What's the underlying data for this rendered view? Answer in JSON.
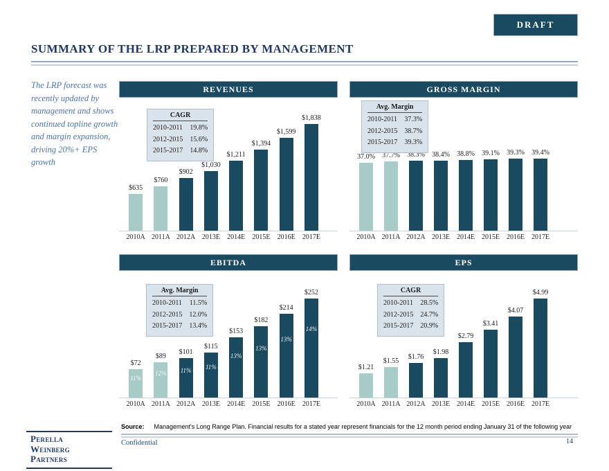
{
  "colors": {
    "accent_dark_teal": "#1A4A5F",
    "accent_light_teal": "#A7CBC6",
    "title_navy": "#1F3864",
    "sidebar_text_blue": "#4C74A6",
    "table_bg": "#D9E3EC",
    "footer_blue": "#1F4E79"
  },
  "header": {
    "draft_label": "DRAFT",
    "title": "SUMMARY OF THE LRP PREPARED BY MANAGEMENT"
  },
  "sidebar": {
    "note": "The LRP forecast was recently updated by management and shows continued topline growth and margin expansion, driving 20%+ EPS growth"
  },
  "chart_data": [
    {
      "type": "bar",
      "title": "REVENUES",
      "categories": [
        "2010A",
        "2011A",
        "2012A",
        "2013E",
        "2014E",
        "2015E",
        "2016E",
        "2017E"
      ],
      "values": [
        635,
        760,
        902,
        1030,
        1211,
        1394,
        1599,
        1838
      ],
      "value_labels": [
        "$635",
        "$760",
        "$902",
        "$1,030",
        "$1,211",
        "$1,394",
        "$1,599",
        "$1,838"
      ],
      "actual_bar_count": 2,
      "ylim": [
        0,
        1838
      ],
      "legend_position": "none",
      "grid": false,
      "stat_table": {
        "header": "CAGR",
        "rows": [
          [
            "2010-2011",
            "19.8%"
          ],
          [
            "2012-2015",
            "15.6%"
          ],
          [
            "2015-2017",
            "14.8%"
          ]
        ]
      }
    },
    {
      "type": "bar",
      "title": "GROSS MARGIN",
      "categories": [
        "2010A",
        "2011A",
        "2012A",
        "2013E",
        "2014E",
        "2015E",
        "2016E",
        "2017E"
      ],
      "values": [
        37.0,
        37.7,
        38.3,
        38.4,
        38.8,
        39.1,
        39.3,
        39.4
      ],
      "value_labels": [
        "37.0%",
        "37.7%",
        "38.3%",
        "38.4%",
        "38.8%",
        "39.1%",
        "39.3%",
        "39.4%"
      ],
      "actual_bar_count": 2,
      "ylim": [
        0,
        39.4
      ],
      "legend_position": "none",
      "grid": false,
      "stat_table": {
        "header": "Avg. Margin",
        "rows": [
          [
            "2010-2011",
            "37.3%"
          ],
          [
            "2012-2015",
            "38.7%"
          ],
          [
            "2015-2017",
            "39.3%"
          ]
        ]
      }
    },
    {
      "type": "bar",
      "title": "EBITDA",
      "categories": [
        "2010A",
        "2011A",
        "2012A",
        "2013E",
        "2014E",
        "2015E",
        "2016E",
        "2017E"
      ],
      "values": [
        72,
        89,
        101,
        115,
        153,
        182,
        214,
        252
      ],
      "value_labels": [
        "$72",
        "$89",
        "$101",
        "$115",
        "$153",
        "$182",
        "$214",
        "$252"
      ],
      "inner_labels": [
        "11%",
        "12%",
        "11%",
        "11%",
        "13%",
        "13%",
        "13%",
        "14%"
      ],
      "actual_bar_count": 2,
      "ylim": [
        0,
        252
      ],
      "legend_position": "none",
      "grid": false,
      "stat_table": {
        "header": "Avg. Margin",
        "rows": [
          [
            "2010-2011",
            "11.5%"
          ],
          [
            "2012-2015",
            "12.0%"
          ],
          [
            "2015-2017",
            "13.4%"
          ]
        ]
      }
    },
    {
      "type": "bar",
      "title": "EPS",
      "categories": [
        "2010A",
        "2011A",
        "2012A",
        "2013E",
        "2014E",
        "2015E",
        "2016E",
        "2017E"
      ],
      "values": [
        1.21,
        1.55,
        1.76,
        1.98,
        2.79,
        3.41,
        4.07,
        4.99
      ],
      "value_labels": [
        "$1.21",
        "$1.55",
        "$1.76",
        "$1.98",
        "$2.79",
        "$3.41",
        "$4.07",
        "$4.99"
      ],
      "actual_bar_count": 2,
      "ylim": [
        0,
        4.99
      ],
      "legend_position": "none",
      "grid": false,
      "stat_table": {
        "header": "CAGR",
        "rows": [
          [
            "2010-2011",
            "28.5%"
          ],
          [
            "2012-2015",
            "24.7%"
          ],
          [
            "2015-2017",
            "20.9%"
          ]
        ]
      }
    }
  ],
  "footer": {
    "source_label": "Source:",
    "source_text": "Management's Long Range Plan. Financial results for a stated year represent financials for the 12 month period ending January 31 of the following year",
    "confidential": "Confidential",
    "page_number": "14",
    "logo_lines": [
      "Perella",
      "Weinberg",
      "Partners"
    ]
  }
}
